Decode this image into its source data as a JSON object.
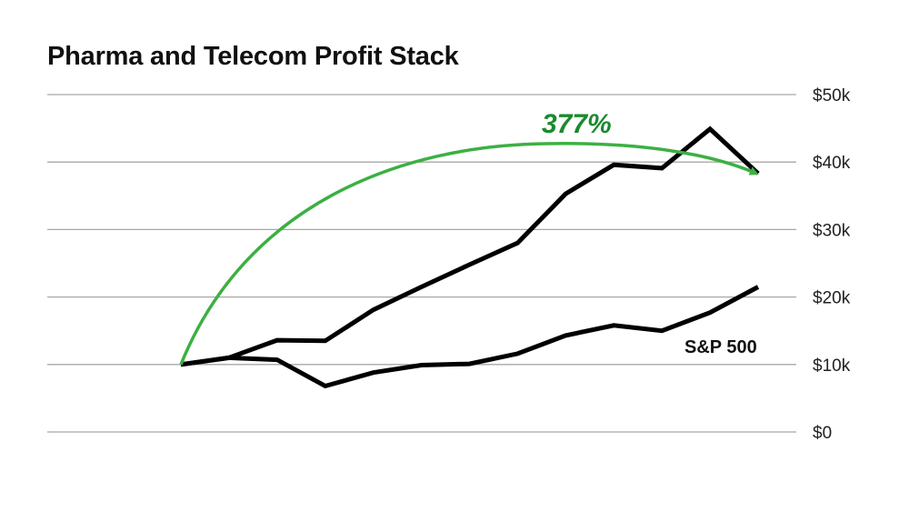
{
  "chart_data": {
    "type": "line",
    "title": "Pharma and Telecom Profit Stack",
    "y_axis": {
      "ylim": [
        0,
        50000
      ],
      "ticks": [
        0,
        10000,
        20000,
        30000,
        40000,
        50000
      ],
      "tick_labels": [
        "$0",
        "$10k",
        "$20k",
        "$30k",
        "$40k",
        "$50k"
      ],
      "position": "right",
      "grid": true
    },
    "series": [
      {
        "name": "",
        "values": [
          10000,
          11000,
          13600,
          13500,
          18100,
          21500,
          24800,
          28000,
          35300,
          39600,
          39100,
          44900,
          38300
        ]
      },
      {
        "name": "S&P 500",
        "values": [
          10000,
          11000,
          10700,
          6800,
          8800,
          9900,
          10100,
          11600,
          14300,
          15800,
          15000,
          17700,
          21500
        ]
      }
    ],
    "annotation": {
      "text": "377%",
      "color": "#3cb043",
      "text_color": "#1a8a2e"
    },
    "line_color": "#000000",
    "grid_color": "#a8a8a8"
  }
}
